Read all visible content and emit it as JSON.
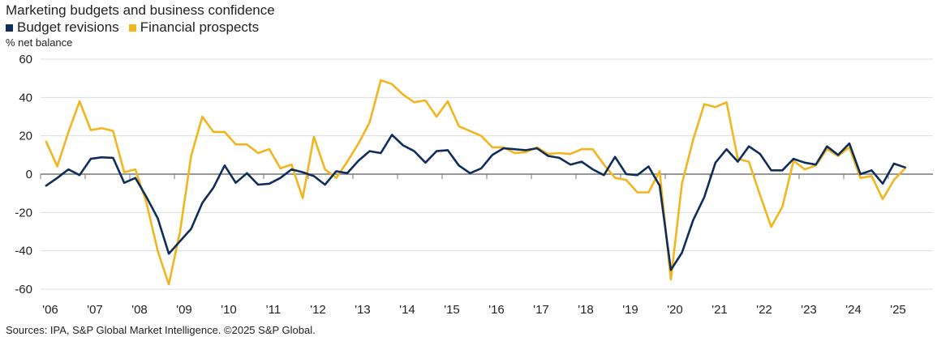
{
  "chart_data": {
    "type": "line",
    "title": "Marketing budgets and business confidence",
    "ylabel": "% net balance",
    "source": "Sources: IPA, S&P Global Market Intelligence. ©2025 S&P Global.",
    "ylim": [
      -60,
      60
    ],
    "yticks": [
      "60",
      "40",
      "20",
      "0",
      "-20",
      "-40",
      "-60"
    ],
    "xlim": [
      2006,
      2026
    ],
    "xticks": [
      "'06",
      "'07",
      "'08",
      "'09",
      "'10",
      "'11",
      "'12",
      "'13",
      "'14",
      "'15",
      "'16",
      "'17",
      "'18",
      "'19",
      "'20",
      "'21",
      "'22",
      "'23",
      "'24",
      "'25"
    ],
    "grid": "horizontal",
    "legend_position": "top-left",
    "series": [
      {
        "name": "Budget revisions",
        "color": "#0f2d5a",
        "values": [
          -6,
          -2,
          2.5,
          -0.5,
          8,
          8.8,
          8.5,
          -4.5,
          -2,
          -12,
          -23,
          -41.5,
          -35,
          -28.5,
          -15,
          -7,
          4.5,
          -4.5,
          0.5,
          -5.5,
          -5,
          -2,
          2.5,
          1,
          -1,
          -5.5,
          1.5,
          0.5,
          7,
          12,
          11,
          20.5,
          15,
          12,
          6,
          12,
          12.5,
          4.5,
          0.5,
          3,
          10,
          13.5,
          13,
          12.5,
          13.5,
          9.5,
          8.5,
          5,
          6.5,
          2.5,
          -0.5,
          9,
          0,
          -0.5,
          4,
          -6,
          -50,
          -41,
          -24,
          -12,
          6,
          13,
          6.5,
          14.5,
          10.5,
          2,
          2,
          8,
          6,
          5,
          14.5,
          10,
          16,
          0,
          2,
          -5,
          5.5,
          3.5
        ]
      },
      {
        "name": "Financial prospects",
        "color": "#f2b51d",
        "values": [
          17,
          4,
          22,
          38,
          23,
          24,
          22.5,
          1,
          2.5,
          -15,
          -40,
          -57.5,
          -30,
          9.5,
          30,
          22,
          22,
          15.5,
          15.5,
          11,
          13,
          3,
          5,
          -12.5,
          19.5,
          2.5,
          -2,
          6.5,
          16,
          27,
          49,
          47,
          41.5,
          37.5,
          38.5,
          30,
          38,
          25,
          22.5,
          20,
          14,
          14,
          11,
          11.5,
          14,
          10.5,
          11,
          10.5,
          13,
          13,
          5,
          -2,
          -3,
          -9.5,
          -9.5,
          1.5,
          -55,
          -5,
          18,
          36.5,
          35,
          37.5,
          8,
          6.5,
          -11,
          -27.5,
          -17,
          7,
          2.5,
          4.5,
          13,
          9.5,
          14,
          -2,
          -1,
          -13,
          -3,
          3
        ]
      }
    ]
  }
}
